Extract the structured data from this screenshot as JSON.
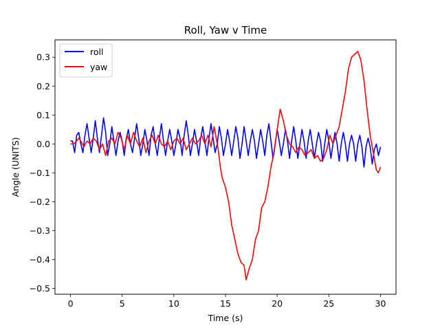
{
  "chart_data": {
    "type": "line",
    "title": "Roll, Yaw v Time",
    "xlabel": "Time (s)",
    "ylabel": "Angle (UNITS)",
    "xlim": [
      -1.5,
      31.5
    ],
    "ylim": [
      -0.52,
      0.36
    ],
    "xticks": [
      0,
      5,
      10,
      15,
      20,
      25,
      30
    ],
    "yticks": [
      -0.5,
      -0.4,
      -0.3,
      -0.2,
      -0.1,
      0.0,
      0.1,
      0.2,
      0.3
    ],
    "xtick_labels": [
      "0",
      "5",
      "10",
      "15",
      "20",
      "25",
      "30"
    ],
    "ytick_labels": [
      "−0.5",
      "−0.4",
      "−0.3",
      "−0.2",
      "−0.1",
      "0.0",
      "0.1",
      "0.2",
      "0.3"
    ],
    "grid": false,
    "legend": "top-left",
    "series": [
      {
        "name": "roll",
        "color": "#0000ff",
        "points": [
          [
            0.0,
            0.01
          ],
          [
            0.2,
            0.01
          ],
          [
            0.4,
            -0.03
          ],
          [
            0.6,
            0.03
          ],
          [
            0.8,
            0.04
          ],
          [
            1.0,
            0.0
          ],
          [
            1.2,
            -0.03
          ],
          [
            1.4,
            0.03
          ],
          [
            1.6,
            0.07
          ],
          [
            1.8,
            0.02
          ],
          [
            2.0,
            -0.03
          ],
          [
            2.2,
            0.02
          ],
          [
            2.4,
            0.08
          ],
          [
            2.6,
            0.02
          ],
          [
            2.8,
            -0.03
          ],
          [
            3.0,
            0.03
          ],
          [
            3.2,
            0.09
          ],
          [
            3.4,
            0.04
          ],
          [
            3.6,
            -0.04
          ],
          [
            3.8,
            0.0
          ],
          [
            4.0,
            0.06
          ],
          [
            4.2,
            0.01
          ],
          [
            4.4,
            -0.04
          ],
          [
            4.6,
            0.01
          ],
          [
            4.8,
            0.04
          ],
          [
            5.0,
            0.01
          ],
          [
            5.2,
            -0.04
          ],
          [
            5.4,
            0.02
          ],
          [
            5.6,
            0.05
          ],
          [
            5.8,
            0.0
          ],
          [
            6.0,
            -0.03
          ],
          [
            6.2,
            0.02
          ],
          [
            6.4,
            0.07
          ],
          [
            6.6,
            0.02
          ],
          [
            6.8,
            -0.04
          ],
          [
            7.0,
            0.0
          ],
          [
            7.2,
            0.05
          ],
          [
            7.4,
            0.01
          ],
          [
            7.6,
            -0.04
          ],
          [
            7.8,
            0.03
          ],
          [
            8.0,
            0.06
          ],
          [
            8.2,
            0.0
          ],
          [
            8.4,
            -0.04
          ],
          [
            8.6,
            0.02
          ],
          [
            8.8,
            0.07
          ],
          [
            9.0,
            0.01
          ],
          [
            9.2,
            -0.04
          ],
          [
            9.4,
            0.01
          ],
          [
            9.6,
            0.05
          ],
          [
            9.8,
            0.01
          ],
          [
            10.0,
            -0.04
          ],
          [
            10.2,
            0.0
          ],
          [
            10.4,
            0.05
          ],
          [
            10.6,
            0.02
          ],
          [
            10.8,
            -0.04
          ],
          [
            11.0,
            0.03
          ],
          [
            11.2,
            0.08
          ],
          [
            11.4,
            0.03
          ],
          [
            11.6,
            -0.04
          ],
          [
            11.8,
            0.0
          ],
          [
            12.0,
            0.05
          ],
          [
            12.2,
            0.01
          ],
          [
            12.4,
            -0.04
          ],
          [
            12.6,
            0.02
          ],
          [
            12.8,
            0.06
          ],
          [
            13.0,
            0.01
          ],
          [
            13.2,
            -0.04
          ],
          [
            13.4,
            0.02
          ],
          [
            13.6,
            0.07
          ],
          [
            13.8,
            0.02
          ],
          [
            14.0,
            -0.03
          ],
          [
            14.2,
            0.0
          ],
          [
            14.4,
            0.06
          ],
          [
            14.6,
            0.02
          ],
          [
            14.8,
            -0.04
          ],
          [
            15.0,
            0.0
          ],
          [
            15.2,
            0.05
          ],
          [
            15.4,
            0.01
          ],
          [
            15.6,
            -0.04
          ],
          [
            15.8,
            0.01
          ],
          [
            16.0,
            0.06
          ],
          [
            16.2,
            0.02
          ],
          [
            16.4,
            -0.05
          ],
          [
            16.6,
            0.0
          ],
          [
            16.8,
            0.06
          ],
          [
            17.0,
            0.01
          ],
          [
            17.2,
            -0.04
          ],
          [
            17.4,
            0.01
          ],
          [
            17.6,
            0.05
          ],
          [
            17.8,
            0.01
          ],
          [
            18.0,
            -0.05
          ],
          [
            18.2,
            0.0
          ],
          [
            18.4,
            0.05
          ],
          [
            18.6,
            0.01
          ],
          [
            18.8,
            -0.04
          ],
          [
            19.0,
            0.03
          ],
          [
            19.2,
            0.07
          ],
          [
            19.4,
            0.01
          ],
          [
            19.6,
            -0.05
          ],
          [
            19.8,
            0.0
          ],
          [
            20.0,
            0.05
          ],
          [
            20.2,
            0.01
          ],
          [
            20.4,
            -0.04
          ],
          [
            20.6,
            0.0
          ],
          [
            20.8,
            0.05
          ],
          [
            21.0,
            0.01
          ],
          [
            21.2,
            -0.05
          ],
          [
            21.4,
            0.01
          ],
          [
            21.6,
            0.06
          ],
          [
            21.8,
            0.01
          ],
          [
            22.0,
            -0.05
          ],
          [
            22.2,
            0.0
          ],
          [
            22.4,
            0.05
          ],
          [
            22.6,
            0.01
          ],
          [
            22.8,
            -0.05
          ],
          [
            23.0,
            0.01
          ],
          [
            23.2,
            0.05
          ],
          [
            23.4,
            0.0
          ],
          [
            23.6,
            -0.05
          ],
          [
            23.8,
            0.0
          ],
          [
            24.0,
            0.04
          ],
          [
            24.2,
            0.01
          ],
          [
            24.4,
            -0.06
          ],
          [
            24.6,
            0.0
          ],
          [
            24.8,
            0.05
          ],
          [
            25.0,
            0.01
          ],
          [
            25.2,
            -0.05
          ],
          [
            25.4,
            0.0
          ],
          [
            25.6,
            0.04
          ],
          [
            25.8,
            0.0
          ],
          [
            26.0,
            -0.06
          ],
          [
            26.2,
            0.0
          ],
          [
            26.4,
            0.04
          ],
          [
            26.6,
            0.0
          ],
          [
            26.8,
            -0.06
          ],
          [
            27.0,
            0.0
          ],
          [
            27.2,
            0.03
          ],
          [
            27.4,
            0.0
          ],
          [
            27.6,
            -0.06
          ],
          [
            27.8,
            0.0
          ],
          [
            28.0,
            0.03
          ],
          [
            28.2,
            -0.01
          ],
          [
            28.4,
            -0.08
          ],
          [
            28.6,
            -0.01
          ],
          [
            28.8,
            0.02
          ],
          [
            29.0,
            -0.01
          ],
          [
            29.2,
            -0.07
          ],
          [
            29.4,
            -0.02
          ],
          [
            29.6,
            0.0
          ],
          [
            29.8,
            -0.04
          ],
          [
            30.0,
            -0.01
          ]
        ]
      },
      {
        "name": "yaw",
        "color": "#ff0000",
        "points": [
          [
            0.0,
            0.0
          ],
          [
            0.3,
            0.0
          ],
          [
            0.6,
            0.01
          ],
          [
            0.8,
            0.02
          ],
          [
            1.0,
            0.01
          ],
          [
            1.3,
            -0.01
          ],
          [
            1.6,
            0.01
          ],
          [
            1.9,
            0.0
          ],
          [
            2.2,
            0.02
          ],
          [
            2.5,
            0.01
          ],
          [
            2.8,
            -0.02
          ],
          [
            3.1,
            0.0
          ],
          [
            3.4,
            -0.04
          ],
          [
            3.7,
            0.01
          ],
          [
            4.0,
            0.02
          ],
          [
            4.3,
            0.0
          ],
          [
            4.6,
            0.04
          ],
          [
            4.9,
            0.02
          ],
          [
            5.2,
            -0.02
          ],
          [
            5.5,
            0.03
          ],
          [
            5.8,
            0.0
          ],
          [
            6.1,
            0.04
          ],
          [
            6.4,
            0.01
          ],
          [
            6.7,
            -0.01
          ],
          [
            7.0,
            0.02
          ],
          [
            7.3,
            -0.03
          ],
          [
            7.6,
            0.01
          ],
          [
            7.9,
            0.03
          ],
          [
            8.2,
            0.0
          ],
          [
            8.5,
            0.03
          ],
          [
            8.8,
            0.0
          ],
          [
            9.1,
            -0.01
          ],
          [
            9.4,
            0.01
          ],
          [
            9.7,
            -0.02
          ],
          [
            10.0,
            0.01
          ],
          [
            10.3,
            0.02
          ],
          [
            10.6,
            0.0
          ],
          [
            10.9,
            0.02
          ],
          [
            11.2,
            -0.02
          ],
          [
            11.5,
            0.0
          ],
          [
            11.8,
            0.02
          ],
          [
            12.1,
            0.0
          ],
          [
            12.4,
            0.01
          ],
          [
            12.7,
            0.03
          ],
          [
            13.0,
            0.0
          ],
          [
            13.3,
            0.03
          ],
          [
            13.6,
            -0.01
          ],
          [
            13.9,
            0.06
          ],
          [
            14.1,
            0.02
          ],
          [
            14.3,
            -0.02
          ],
          [
            14.5,
            -0.08
          ],
          [
            14.7,
            -0.12
          ],
          [
            15.0,
            -0.15
          ],
          [
            15.3,
            -0.2
          ],
          [
            15.6,
            -0.28
          ],
          [
            15.9,
            -0.33
          ],
          [
            16.2,
            -0.38
          ],
          [
            16.5,
            -0.41
          ],
          [
            16.8,
            -0.42
          ],
          [
            17.0,
            -0.47
          ],
          [
            17.3,
            -0.43
          ],
          [
            17.6,
            -0.4
          ],
          [
            17.9,
            -0.33
          ],
          [
            18.2,
            -0.3
          ],
          [
            18.5,
            -0.22
          ],
          [
            18.8,
            -0.2
          ],
          [
            19.1,
            -0.15
          ],
          [
            19.4,
            -0.08
          ],
          [
            19.7,
            -0.03
          ],
          [
            20.0,
            0.05
          ],
          [
            20.3,
            0.12
          ],
          [
            20.6,
            0.08
          ],
          [
            20.9,
            0.03
          ],
          [
            21.2,
            0.0
          ],
          [
            21.5,
            -0.01
          ],
          [
            21.8,
            -0.03
          ],
          [
            22.1,
            -0.01
          ],
          [
            22.4,
            -0.02
          ],
          [
            22.7,
            -0.04
          ],
          [
            23.0,
            -0.03
          ],
          [
            23.3,
            -0.02
          ],
          [
            23.6,
            -0.05
          ],
          [
            23.9,
            -0.04
          ],
          [
            24.2,
            -0.06
          ],
          [
            24.5,
            -0.05
          ],
          [
            24.8,
            -0.02
          ],
          [
            25.1,
            0.03
          ],
          [
            25.4,
            0.0
          ],
          [
            25.7,
            0.03
          ],
          [
            26.0,
            0.06
          ],
          [
            26.3,
            0.12
          ],
          [
            26.6,
            0.18
          ],
          [
            26.9,
            0.26
          ],
          [
            27.2,
            0.3
          ],
          [
            27.5,
            0.31
          ],
          [
            27.8,
            0.32
          ],
          [
            28.1,
            0.29
          ],
          [
            28.4,
            0.22
          ],
          [
            28.7,
            0.12
          ],
          [
            29.0,
            0.03
          ],
          [
            29.3,
            -0.03
          ],
          [
            29.6,
            -0.09
          ],
          [
            29.8,
            -0.1
          ],
          [
            30.0,
            -0.08
          ]
        ]
      }
    ]
  }
}
